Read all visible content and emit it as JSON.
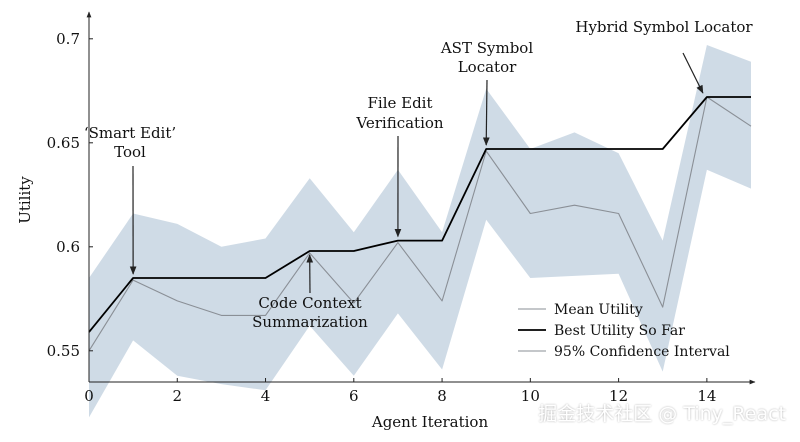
{
  "chart_data": {
    "type": "line",
    "xlabel": "Agent Iteration",
    "ylabel": "Utility",
    "xlim": [
      0,
      15
    ],
    "ylim": [
      0.535,
      0.71
    ],
    "x": [
      0,
      1,
      2,
      3,
      4,
      5,
      6,
      7,
      8,
      9,
      10,
      11,
      12,
      13,
      14,
      15
    ],
    "xticks": [
      "0",
      "2",
      "4",
      "6",
      "8",
      "10",
      "12",
      "14"
    ],
    "xtick_values": [
      0,
      2,
      4,
      6,
      8,
      10,
      12,
      14
    ],
    "yticks": [
      "0.55",
      "0.6",
      "0.65",
      "0.7"
    ],
    "ytick_values": [
      0.55,
      0.6,
      0.65,
      0.7
    ],
    "series": [
      {
        "name": "Mean Utility",
        "values": [
          0.55,
          0.584,
          0.574,
          0.567,
          0.567,
          0.597,
          0.573,
          0.602,
          0.574,
          0.646,
          0.616,
          0.62,
          0.616,
          0.571,
          0.672,
          0.658
        ],
        "color": "#8a8f96"
      },
      {
        "name": "Best Utility So Far",
        "values": [
          0.559,
          0.585,
          0.585,
          0.585,
          0.585,
          0.598,
          0.598,
          0.603,
          0.603,
          0.647,
          0.647,
          0.647,
          0.647,
          0.647,
          0.672,
          0.672
        ],
        "color": "#000000"
      }
    ],
    "confidence_interval": {
      "name": "95% Confidence Interval",
      "upper": [
        0.585,
        0.616,
        0.611,
        0.6,
        0.604,
        0.633,
        0.607,
        0.637,
        0.607,
        0.676,
        0.647,
        0.655,
        0.645,
        0.603,
        0.697,
        0.689
      ],
      "lower": [
        0.518,
        0.555,
        0.538,
        0.534,
        0.531,
        0.562,
        0.538,
        0.568,
        0.541,
        0.613,
        0.585,
        0.586,
        0.587,
        0.54,
        0.637,
        0.628
      ],
      "color": "#cfdbe6"
    },
    "legend_position": "bottom-right",
    "annotations": [
      {
        "lines": [
          "‘Smart Edit’",
          "Tool"
        ],
        "x": 1,
        "y": 0.585,
        "placement": "above"
      },
      {
        "lines": [
          "Code Context",
          "Summarization"
        ],
        "x": 5,
        "y": 0.598,
        "placement": "below"
      },
      {
        "lines": [
          "File Edit",
          "Verification"
        ],
        "x": 7,
        "y": 0.603,
        "placement": "above"
      },
      {
        "lines": [
          "AST Symbol",
          "Locator"
        ],
        "x": 9,
        "y": 0.647,
        "placement": "above"
      },
      {
        "lines": [
          "Hybrid Symbol Locator"
        ],
        "x": 14,
        "y": 0.672,
        "placement": "above-left"
      }
    ]
  },
  "watermark": "掘金技术社区 @ Tiny_React"
}
